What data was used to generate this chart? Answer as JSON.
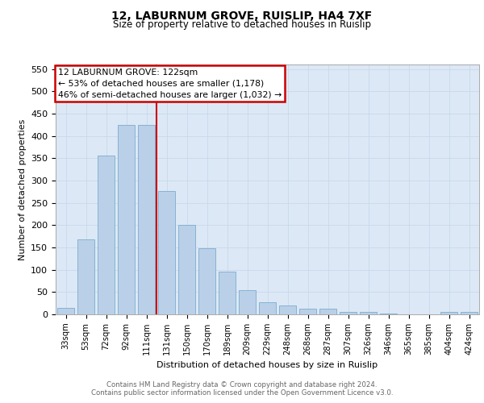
{
  "title1": "12, LABURNUM GROVE, RUISLIP, HA4 7XF",
  "title2": "Size of property relative to detached houses in Ruislip",
  "xlabel": "Distribution of detached houses by size in Ruislip",
  "ylabel": "Number of detached properties",
  "categories": [
    "33sqm",
    "53sqm",
    "72sqm",
    "92sqm",
    "111sqm",
    "131sqm",
    "150sqm",
    "170sqm",
    "189sqm",
    "209sqm",
    "229sqm",
    "248sqm",
    "268sqm",
    "287sqm",
    "307sqm",
    "326sqm",
    "346sqm",
    "365sqm",
    "385sqm",
    "404sqm",
    "424sqm"
  ],
  "values": [
    15,
    168,
    356,
    425,
    425,
    276,
    200,
    148,
    95,
    54,
    28,
    20,
    13,
    13,
    6,
    5,
    2,
    0,
    0,
    5,
    5
  ],
  "bar_color": "#bad0e8",
  "bar_edge_color": "#7aadd0",
  "background_color": "#ffffff",
  "plot_bg_color": "#dce8f5",
  "grid_color": "#c8d8ec",
  "vline_color": "#cc0000",
  "vline_x_index": 5,
  "annotation_text": "12 LABURNUM GROVE: 122sqm\n← 53% of detached houses are smaller (1,178)\n46% of semi-detached houses are larger (1,032) →",
  "annotation_box_facecolor": "#ffffff",
  "annotation_box_edgecolor": "#cc0000",
  "footer_text": "Contains HM Land Registry data © Crown copyright and database right 2024.\nContains public sector information licensed under the Open Government Licence v3.0.",
  "ylim": [
    0,
    560
  ],
  "yticks": [
    0,
    50,
    100,
    150,
    200,
    250,
    300,
    350,
    400,
    450,
    500,
    550
  ]
}
